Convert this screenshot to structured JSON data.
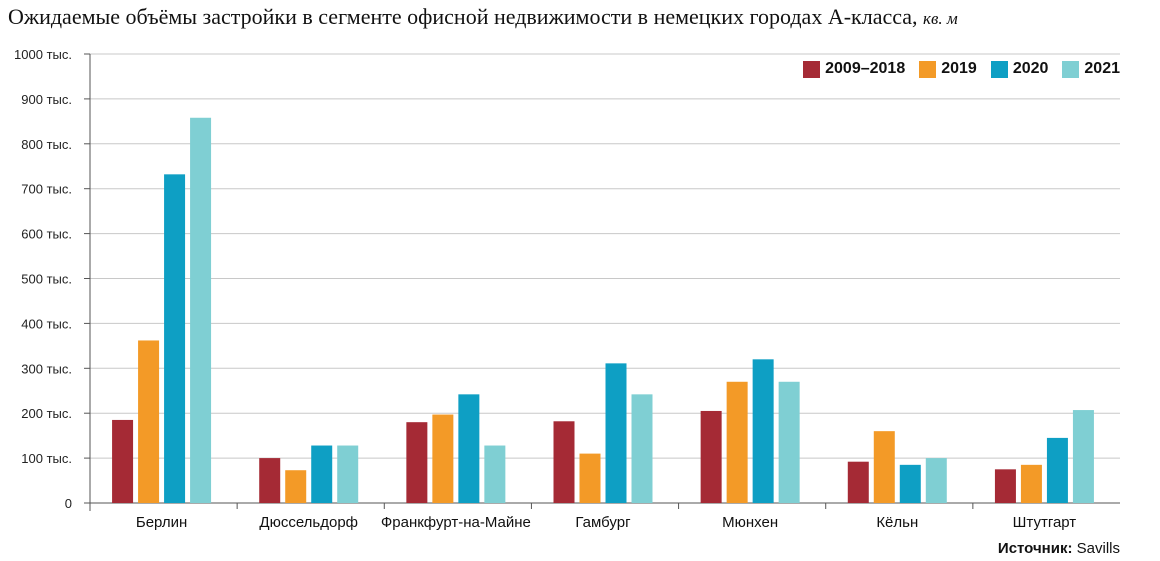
{
  "title": "Ожидаемые объёмы застройки в сегменте офисной недвижимости в немецких городах А-класса,",
  "title_unit": "кв. м",
  "source": {
    "label": "Источник:",
    "value": "Savills"
  },
  "chart_data": {
    "type": "bar",
    "title": "Ожидаемые объёмы застройки в сегменте офисной недвижимости в немецких городах А-класса, кв. м",
    "xlabel": "",
    "ylabel": "",
    "ylim": [
      0,
      1000
    ],
    "yticks": [
      0,
      100,
      200,
      300,
      400,
      500,
      600,
      700,
      800,
      900,
      1000
    ],
    "ytick_labels": [
      "0",
      "100 тыс.",
      "200 тыс.",
      "300 тыс.",
      "400 тыс.",
      "500 тыс.",
      "600 тыс.",
      "700 тыс.",
      "800 тыс.",
      "900 тыс.",
      "1000 тыс."
    ],
    "grid": true,
    "legend_position": "top-right",
    "categories": [
      "Берлин",
      "Дюссельдорф",
      "Франкфурт-на-Майне",
      "Гамбург",
      "Мюнхен",
      "Кёльн",
      "Штутгарт"
    ],
    "series": [
      {
        "name": "2009–2018",
        "color": "#a52a35",
        "values": [
          185,
          100,
          180,
          182,
          205,
          92,
          75
        ]
      },
      {
        "name": "2019",
        "color": "#f39a27",
        "values": [
          362,
          73,
          197,
          110,
          270,
          160,
          85
        ]
      },
      {
        "name": "2020",
        "color": "#0e9fc4",
        "values": [
          732,
          128,
          242,
          311,
          320,
          85,
          145
        ]
      },
      {
        "name": "2021",
        "color": "#7fcfd3",
        "values": [
          858,
          128,
          128,
          242,
          270,
          100,
          207
        ]
      }
    ]
  }
}
